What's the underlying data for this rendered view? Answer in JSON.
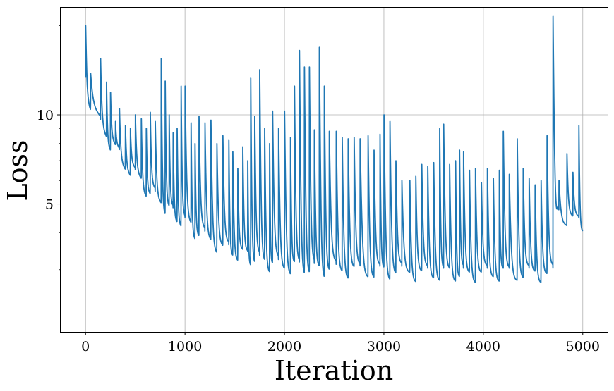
{
  "chart_data": {
    "type": "line",
    "title": "",
    "xlabel": "Iteration",
    "ylabel": "Loss",
    "y_scale": "log",
    "xlim": [
      -250,
      5250
    ],
    "ylim": [
      1.85,
      23
    ],
    "grid": true,
    "legend": "none",
    "x_ticks": [
      0,
      1000,
      2000,
      3000,
      4000,
      5000
    ],
    "y_ticks_major": [
      5,
      10
    ],
    "y_ticks_minor": [
      3,
      4,
      6,
      7,
      8,
      9,
      20
    ],
    "line_color": "#1f77b4",
    "series": [
      {
        "points": [
          [
            0,
            14.5
          ],
          [
            15,
            12.8
          ],
          [
            40,
            12.0
          ],
          [
            70,
            11.4
          ],
          [
            100,
            11.0
          ],
          [
            130,
            10.7
          ],
          [
            160,
            10.4
          ],
          [
            190,
            10.0
          ],
          [
            220,
            9.6
          ],
          [
            250,
            9.2
          ],
          [
            280,
            8.9
          ],
          [
            310,
            8.6
          ],
          [
            350,
            8.2
          ],
          [
            400,
            7.8
          ],
          [
            450,
            7.4
          ],
          [
            500,
            7.1
          ],
          [
            550,
            6.8
          ],
          [
            600,
            6.5
          ],
          [
            650,
            6.2
          ],
          [
            700,
            6.0
          ],
          [
            800,
            5.6
          ],
          [
            900,
            5.2
          ],
          [
            1000,
            4.9
          ],
          [
            1100,
            4.6
          ],
          [
            1200,
            4.4
          ],
          [
            1300,
            4.2
          ],
          [
            1400,
            4.0
          ],
          [
            1500,
            3.9
          ],
          [
            1600,
            3.8
          ],
          [
            1700,
            3.7
          ],
          [
            1800,
            3.6
          ],
          [
            1900,
            3.55
          ],
          [
            2000,
            3.5
          ],
          [
            2200,
            3.45
          ],
          [
            2400,
            3.4
          ],
          [
            2600,
            3.4
          ],
          [
            2800,
            3.35
          ],
          [
            3000,
            3.35
          ],
          [
            3200,
            3.35
          ],
          [
            3400,
            3.3
          ],
          [
            3600,
            3.3
          ],
          [
            3800,
            3.3
          ],
          [
            4000,
            3.3
          ],
          [
            4200,
            3.3
          ],
          [
            4400,
            3.3
          ],
          [
            4600,
            3.3
          ],
          [
            4700,
            3.3
          ],
          [
            4750,
            5.5
          ],
          [
            4800,
            5.2
          ],
          [
            4900,
            5.0
          ],
          [
            5000,
            4.8
          ]
        ],
        "spikes": [
          [
            0,
            20.0
          ],
          [
            50,
            13.8
          ],
          [
            150,
            15.5
          ],
          [
            210,
            12.9
          ],
          [
            250,
            11.9
          ],
          [
            300,
            9.5
          ],
          [
            340,
            10.5
          ],
          [
            400,
            9.2
          ],
          [
            450,
            9.0
          ],
          [
            500,
            10.0
          ],
          [
            560,
            9.7
          ],
          [
            610,
            9.0
          ],
          [
            650,
            10.2
          ],
          [
            700,
            9.5
          ],
          [
            760,
            15.5
          ],
          [
            800,
            13.0
          ],
          [
            840,
            10.0
          ],
          [
            880,
            8.7
          ],
          [
            920,
            9.0
          ],
          [
            960,
            12.5
          ],
          [
            1000,
            12.5
          ],
          [
            1060,
            9.4
          ],
          [
            1100,
            8.0
          ],
          [
            1140,
            9.9
          ],
          [
            1200,
            9.4
          ],
          [
            1260,
            9.6
          ],
          [
            1320,
            8.0
          ],
          [
            1380,
            8.5
          ],
          [
            1440,
            8.2
          ],
          [
            1480,
            7.5
          ],
          [
            1530,
            6.6
          ],
          [
            1580,
            7.8
          ],
          [
            1630,
            7.0
          ],
          [
            1660,
            13.3
          ],
          [
            1700,
            9.9
          ],
          [
            1750,
            14.2
          ],
          [
            1800,
            9.0
          ],
          [
            1850,
            8.0
          ],
          [
            1880,
            10.3
          ],
          [
            1940,
            9.0
          ],
          [
            2000,
            10.3
          ],
          [
            2060,
            8.4
          ],
          [
            2100,
            12.5
          ],
          [
            2150,
            16.5
          ],
          [
            2200,
            14.5
          ],
          [
            2250,
            14.5
          ],
          [
            2300,
            8.9
          ],
          [
            2350,
            16.9
          ],
          [
            2400,
            12.5
          ],
          [
            2450,
            8.8
          ],
          [
            2520,
            8.8
          ],
          [
            2580,
            8.4
          ],
          [
            2640,
            8.3
          ],
          [
            2700,
            8.4
          ],
          [
            2760,
            8.3
          ],
          [
            2840,
            8.5
          ],
          [
            2900,
            7.6
          ],
          [
            2960,
            8.6
          ],
          [
            3000,
            10.0
          ],
          [
            3060,
            9.5
          ],
          [
            3120,
            7.0
          ],
          [
            3180,
            6.0
          ],
          [
            3260,
            6.0
          ],
          [
            3320,
            6.2
          ],
          [
            3380,
            6.8
          ],
          [
            3440,
            6.7
          ],
          [
            3500,
            6.9
          ],
          [
            3560,
            9.0
          ],
          [
            3600,
            9.3
          ],
          [
            3660,
            6.8
          ],
          [
            3720,
            7.0
          ],
          [
            3760,
            7.6
          ],
          [
            3800,
            7.5
          ],
          [
            3860,
            6.5
          ],
          [
            3920,
            6.6
          ],
          [
            3980,
            5.9
          ],
          [
            4040,
            6.6
          ],
          [
            4100,
            6.1
          ],
          [
            4160,
            6.5
          ],
          [
            4200,
            8.8
          ],
          [
            4260,
            6.3
          ],
          [
            4340,
            8.3
          ],
          [
            4400,
            6.6
          ],
          [
            4460,
            6.1
          ],
          [
            4520,
            5.8
          ],
          [
            4580,
            6.0
          ],
          [
            4640,
            8.5
          ],
          [
            4700,
            21.5
          ],
          [
            4760,
            6.0
          ],
          [
            4840,
            7.4
          ],
          [
            4900,
            6.4
          ],
          [
            4960,
            9.2
          ]
        ]
      }
    ]
  }
}
